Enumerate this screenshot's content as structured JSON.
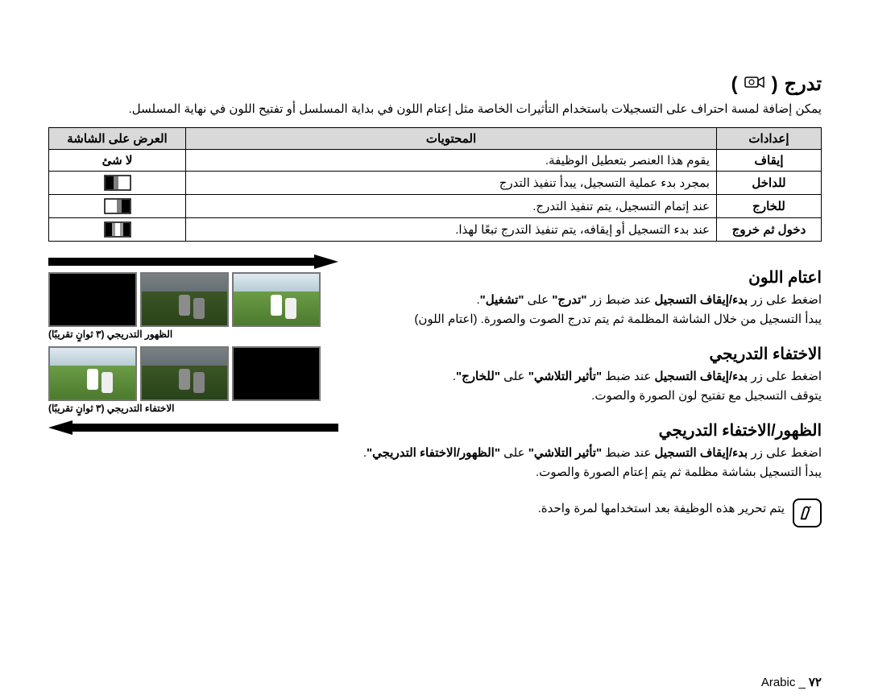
{
  "title": "تدرج",
  "title_icon_label": "camera-icon",
  "intro": "يمكن إضافة لمسة احتراف على التسجيلات باستخدام التأثيرات الخاصة مثل إعتام اللون في بداية المسلسل أو تفتيح اللون في نهاية المسلسل.",
  "table": {
    "headers": {
      "settings": "إعدادات",
      "contents": "المحتويات",
      "display": "العرض على الشاشة"
    },
    "rows": [
      {
        "setting": "إيقاف",
        "content": "يقوم هذا العنصر بتعطيل الوظيفة.",
        "display_text": "لا شئ",
        "icon": null
      },
      {
        "setting": "للداخل",
        "content": "بمجرد بدء عملية التسجيل، يبدأ تنفيذ التدرج",
        "display_text": "",
        "icon": "fade-in"
      },
      {
        "setting": "للخارج",
        "content": "عند إتمام التسجيل، يتم تنفيذ التدرج.",
        "display_text": "",
        "icon": "fade-out"
      },
      {
        "setting": "دخول ثم خروج",
        "content": "عند بدء التسجيل أو إيقافه، يتم تنفيذ التدرج تبعًا لهذا.",
        "display_text": "",
        "icon": "fade-inout"
      }
    ]
  },
  "sections": {
    "s1": {
      "heading": "اعتام اللون",
      "lines": [
        "اضغط على زر <b>بدء/إيقاف التسجيل</b> عند ضبط زر <b>\"تدرج\"</b> على <b>\"تشغيل\"</b>.",
        "يبدأ التسجيل من خلال الشاشة المظلمة ثم يتم تدرج الصوت والصورة. (اعتام اللون)"
      ]
    },
    "s2": {
      "heading": "الاختفاء التدريجي",
      "lines": [
        "اضغط على زر <b>بدء/إيقاف التسجيل</b> عند ضبط <b>\"تأثير التلاشي\"</b> على <b>\"للخارج\"</b>.",
        "يتوقف التسجيل مع تفتيح لون الصورة والصوت."
      ]
    },
    "s3": {
      "heading": "الظهور/الاختفاء التدريجي",
      "lines": [
        "اضغط على زر <b>بدء/إيقاف التسجيل</b> عند ضبط <b>\"تأثير التلاشي\"</b> على <b>\"الظهور/الاختفاء التدريجي\"</b>.",
        "",
        "يبدأ التسجيل بشاشة مظلمة ثم يتم إعتام الصورة والصوت."
      ]
    }
  },
  "figure": {
    "caption_top": "الظهور التدريجي (٣ ثوانٍ تقريبًا)",
    "caption_bottom": "الاختفاء التدريجي (٣ ثوانٍ تقريبًا)"
  },
  "note": "يتم تحرير هذه الوظيفة بعد استخدامها لمرة واحدة.",
  "footer": {
    "lang": "Arabic",
    "page": "٧٢"
  },
  "colors": {
    "header_bg": "#d9d9d9",
    "border": "#000000"
  }
}
